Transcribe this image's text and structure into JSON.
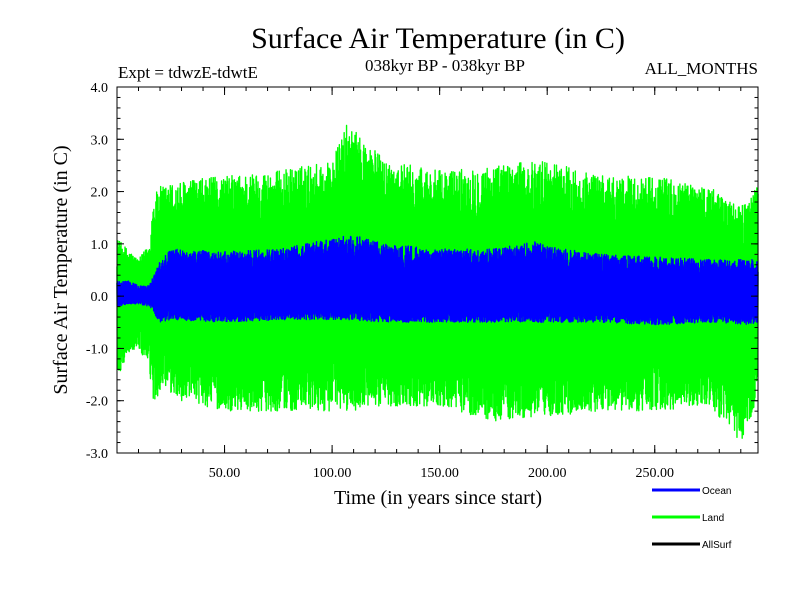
{
  "chart_data": {
    "type": "line",
    "title": "Surface Air Temperature (in C)",
    "subtitle_left": "Expt = tdwzE-tdwtE",
    "subtitle_center": "038kyr BP - 038kyr BP",
    "subtitle_right": "ALL_MONTHS",
    "xlabel": "Time (in years since start)",
    "ylabel": "Surface Air Temperature (in C)",
    "xlim": [
      0,
      298
    ],
    "ylim": [
      -3.0,
      4.0
    ],
    "x_ticks": [
      50,
      100,
      150,
      200,
      250
    ],
    "x_tick_labels": [
      "50.00",
      "100.00",
      "150.00",
      "200.00",
      "250.00"
    ],
    "y_ticks": [
      -3,
      -2,
      -1,
      0,
      1,
      2,
      3,
      4
    ],
    "y_tick_labels": [
      "-3.0",
      "-2.0",
      "-1.0",
      "0.0",
      "1.0",
      "2.0",
      "3.0",
      "4.0"
    ],
    "legend_position": "bottom-right",
    "series": [
      {
        "name": "Land",
        "color": "#00ff00",
        "envelope": {
          "x": [
            0,
            5,
            10,
            15,
            17,
            20,
            30,
            50,
            75,
            100,
            107,
            125,
            150,
            175,
            200,
            225,
            250,
            275,
            290,
            298
          ],
          "upper": [
            1.1,
            0.9,
            0.7,
            1.0,
            1.9,
            2.1,
            2.2,
            2.3,
            2.4,
            2.6,
            3.3,
            2.6,
            2.4,
            2.5,
            2.6,
            2.3,
            2.3,
            2.1,
            1.7,
            2.1
          ],
          "lower": [
            -1.6,
            -1.1,
            -1.0,
            -1.4,
            -2.2,
            -1.8,
            -2.0,
            -2.2,
            -2.2,
            -2.2,
            -2.2,
            -2.1,
            -2.1,
            -2.4,
            -2.3,
            -2.2,
            -2.2,
            -2.1,
            -2.8,
            -2.0
          ]
        }
      },
      {
        "name": "Ocean",
        "color": "#0000ff",
        "envelope": {
          "x": [
            0,
            5,
            10,
            15,
            20,
            25,
            50,
            75,
            100,
            107,
            125,
            150,
            175,
            195,
            200,
            225,
            250,
            275,
            298
          ],
          "upper": [
            0.3,
            0.3,
            0.2,
            0.2,
            0.7,
            0.9,
            0.85,
            0.9,
            1.1,
            1.2,
            1.0,
            0.9,
            0.9,
            1.05,
            0.95,
            0.8,
            0.75,
            0.7,
            0.7
          ],
          "lower": [
            -0.2,
            -0.15,
            -0.15,
            -0.2,
            -0.5,
            -0.45,
            -0.5,
            -0.45,
            -0.45,
            -0.45,
            -0.5,
            -0.5,
            -0.5,
            -0.5,
            -0.5,
            -0.5,
            -0.55,
            -0.5,
            -0.55
          ]
        }
      },
      {
        "name": "AllSurf",
        "color": "#000000"
      }
    ]
  }
}
